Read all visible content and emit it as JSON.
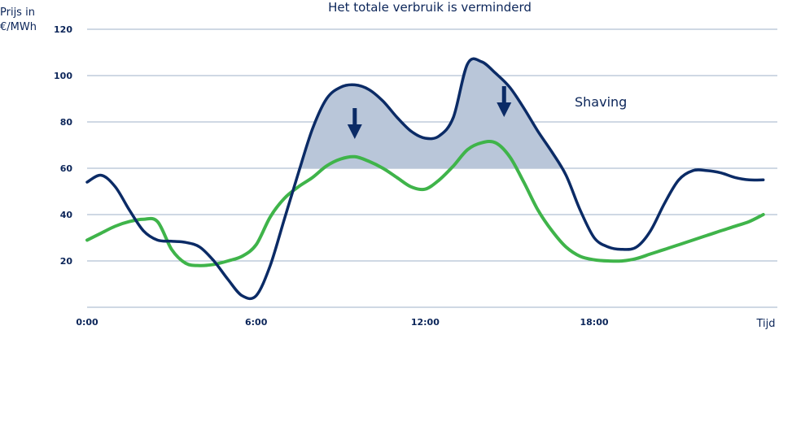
{
  "chart_data": {
    "type": "line",
    "title": "Het totale verbruik is verminderd",
    "ylabel_lines": [
      "Prijs in",
      "€/MWh"
    ],
    "xlabel": "Tijd",
    "ylim": [
      0,
      120
    ],
    "xlim": [
      0,
      24.5
    ],
    "y_ticks": [
      120,
      100,
      80,
      60,
      40,
      20
    ],
    "x_ticks": [
      {
        "value": 0,
        "label": "0:00"
      },
      {
        "value": 6,
        "label": "6:00"
      },
      {
        "value": 12,
        "label": "12:00"
      },
      {
        "value": 18,
        "label": "18:00"
      }
    ],
    "grid": true,
    "threshold": 60,
    "annotation": "Shaving",
    "colors": {
      "original": "#0b2b66",
      "shaved": "#3fb44a",
      "fill": "#b9c6d9",
      "grid": "#9fb2c8",
      "text": "#0b2559"
    },
    "series": [
      {
        "x": [
          0,
          0.5,
          1,
          1.5,
          2,
          2.5,
          3,
          3.5,
          4,
          4.5,
          5,
          5.5,
          6,
          6.5,
          7,
          7.5,
          8,
          8.5,
          9,
          9.5,
          10,
          10.5,
          11,
          11.5,
          12,
          12.5,
          13,
          13.5,
          14,
          14.5,
          15,
          15.5,
          16,
          16.5,
          17,
          17.5,
          18,
          18.5,
          19,
          19.5,
          20,
          20.5,
          21,
          21.5,
          22,
          22.5,
          23,
          23.5,
          24
        ],
        "values": [
          54,
          57,
          52,
          42,
          33,
          29,
          28.5,
          28,
          26,
          20,
          12,
          5,
          5,
          18,
          38,
          58,
          77,
          90,
          95,
          96,
          94,
          89,
          82,
          76,
          73,
          74,
          82,
          105,
          106,
          101,
          95,
          86,
          76,
          67,
          57,
          42,
          30,
          26,
          25,
          26,
          33,
          45,
          55,
          59,
          59,
          58,
          56,
          55,
          55
        ]
      },
      {
        "x": [
          0,
          0.5,
          1,
          1.5,
          2,
          2.5,
          3,
          3.5,
          4,
          4.5,
          5,
          5.5,
          6,
          6.5,
          7,
          7.5,
          8,
          8.5,
          9,
          9.5,
          10,
          10.5,
          11,
          11.5,
          12,
          12.5,
          13,
          13.5,
          14,
          14.5,
          15,
          15.5,
          16,
          16.5,
          17,
          17.5,
          18,
          18.5,
          19,
          19.5,
          20,
          20.5,
          21,
          21.5,
          22,
          22.5,
          23,
          23.5,
          24
        ],
        "values": [
          29,
          32,
          35,
          37,
          38,
          37,
          25,
          19,
          18,
          18.5,
          20,
          22,
          27,
          39,
          47,
          52,
          56,
          61,
          64,
          65,
          63,
          60,
          56,
          52,
          51,
          55,
          61,
          68,
          71,
          71,
          65,
          54,
          42,
          33,
          26,
          22,
          20.5,
          20,
          20,
          21,
          23,
          25,
          27,
          29,
          31,
          33,
          35,
          37,
          40
        ]
      }
    ]
  }
}
